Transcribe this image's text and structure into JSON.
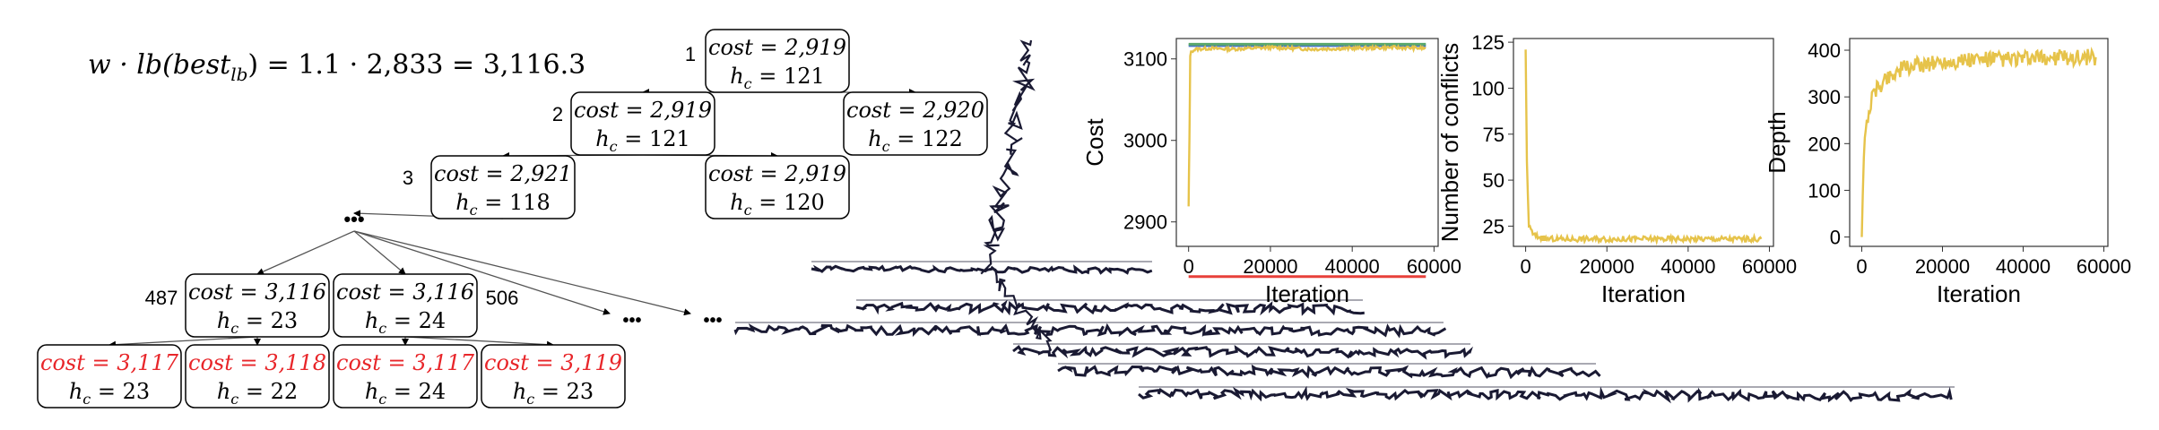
{
  "formula": {
    "lhs": "w · lb(best",
    "lhs_sub": "lb",
    "rhs": ") = 1.1 · 2,833 = 3,116.3"
  },
  "tree": {
    "nodes": [
      {
        "id": "n1",
        "cost": "cost = 2,919",
        "hc": "h",
        "hc_sub": "c",
        "hc_val": " = 121",
        "red": false
      },
      {
        "id": "n2",
        "cost": "cost = 2,919",
        "hc": "h",
        "hc_sub": "c",
        "hc_val": " = 121",
        "red": false
      },
      {
        "id": "n3",
        "cost": "cost = 2,920",
        "hc": "h",
        "hc_sub": "c",
        "hc_val": " = 122",
        "red": false
      },
      {
        "id": "n4",
        "cost": "cost = 2,921",
        "hc": "h",
        "hc_sub": "c",
        "hc_val": " = 118",
        "red": false
      },
      {
        "id": "n5",
        "cost": "cost = 2,919",
        "hc": "h",
        "hc_sub": "c",
        "hc_val": " = 120",
        "red": false
      },
      {
        "id": "n6",
        "cost": "cost = 3,116",
        "hc": "h",
        "hc_sub": "c",
        "hc_val": " = 23",
        "red": false
      },
      {
        "id": "n7",
        "cost": "cost = 3,116",
        "hc": "h",
        "hc_sub": "c",
        "hc_val": " = 24",
        "red": false
      },
      {
        "id": "n8",
        "cost": "cost = 3,117",
        "hc": "h",
        "hc_sub": "c",
        "hc_val": " = 23",
        "red": true
      },
      {
        "id": "n9",
        "cost": "cost = 3,118",
        "hc": "h",
        "hc_sub": "c",
        "hc_val": " = 22",
        "red": true
      },
      {
        "id": "n10",
        "cost": "cost = 3,117",
        "hc": "h",
        "hc_sub": "c",
        "hc_val": " = 24",
        "red": true
      },
      {
        "id": "n11",
        "cost": "cost = 3,119",
        "hc": "h",
        "hc_sub": "c",
        "hc_val": " = 23",
        "red": true
      }
    ],
    "expansion_labels": [
      "1",
      "2",
      "3",
      "487",
      "506"
    ],
    "ellipsis": "•••",
    "ellipsis_small": "•••",
    "colors": {
      "red": "#e8262a",
      "ink": "#000000",
      "edge": "#555555",
      "tree": "#1a1a33"
    }
  },
  "charts": [
    {
      "name": "cost-chart",
      "chart_data": {
        "type": "line",
        "title": "",
        "xlabel": "Iteration",
        "ylabel": "Cost",
        "xlim": [
          -3000,
          61000
        ],
        "ylim": [
          2870,
          3125
        ],
        "xticks": [
          0,
          20000,
          40000,
          60000
        ],
        "yticks": [
          2900,
          3000,
          3100
        ],
        "series": [
          {
            "color": "#e6c34a",
            "x": [
              0,
              200,
              400,
              800,
              2000,
              5000,
              10000,
              20000,
              30000,
              40000,
              50000,
              58000
            ],
            "values": [
              2919,
              3000,
              3105,
              3110,
              3112,
              3113,
              3112,
              3114,
              3112,
              3113,
              3114,
              3113
            ]
          },
          {
            "color": "#5aa86c",
            "x": [
              0,
              58000
            ],
            "values": [
              3118,
              3118
            ]
          },
          {
            "color": "#4472c4",
            "x": [
              0,
              58000
            ],
            "values": [
              3116.3,
              3116.3
            ]
          },
          {
            "color": "#e8403a",
            "x": [
              0,
              58000
            ],
            "values": [
              2833,
              2833
            ]
          }
        ]
      }
    },
    {
      "name": "conflicts-chart",
      "chart_data": {
        "type": "line",
        "title": "",
        "xlabel": "Iteration",
        "ylabel": "Number of conflicts",
        "xlim": [
          -3000,
          61000
        ],
        "ylim": [
          14,
          127
        ],
        "xticks": [
          0,
          20000,
          40000,
          60000
        ],
        "yticks": [
          25,
          50,
          75,
          100,
          125
        ],
        "series": [
          {
            "color": "#e6c34a",
            "x": [
              0,
              300,
              800,
              2000,
              5000,
              10000,
              20000,
              30000,
              40000,
              50000,
              58000
            ],
            "values": [
              121,
              60,
              25,
              20,
              18,
              18,
              18,
              18,
              18,
              18,
              18
            ]
          }
        ]
      }
    },
    {
      "name": "depth-chart",
      "chart_data": {
        "type": "line",
        "title": "",
        "xlabel": "Iteration",
        "ylabel": "Depth",
        "xlim": [
          -3000,
          61000
        ],
        "ylim": [
          -20,
          425
        ],
        "xticks": [
          0,
          20000,
          40000,
          60000
        ],
        "yticks": [
          0,
          100,
          200,
          300,
          400
        ],
        "series": [
          {
            "color": "#e6c34a",
            "x": [
              0,
              500,
              1500,
              3000,
              6000,
              10000,
              15000,
              20000,
              30000,
              40000,
              50000,
              58000
            ],
            "values": [
              0,
              180,
              260,
              310,
              340,
              360,
              370,
              375,
              380,
              380,
              385,
              385
            ]
          }
        ]
      }
    }
  ]
}
